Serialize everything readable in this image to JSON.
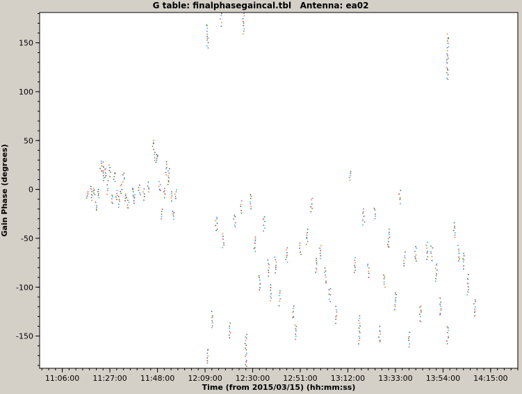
{
  "window": {
    "bg": "#d4d0c8",
    "plot_bg": "#ffffff",
    "frame_color": "#000000"
  },
  "chart_data": {
    "type": "scatter",
    "title": "G table: finalphasegaincal.tbl   Antenna: ea02",
    "xlabel": "Time (from 2015/03/15) (hh:mm:ss)",
    "ylabel": "Gain Phase (degrees)",
    "x_ticks": [
      "11:06:00",
      "11:27:00",
      "11:48:00",
      "12:09:00",
      "12:30:00",
      "12:51:00",
      "13:12:00",
      "13:33:00",
      "13:54:00",
      "14:15:00"
    ],
    "y_ticks": [
      -150,
      -100,
      -50,
      0,
      50,
      100,
      150
    ],
    "xlim": [
      "10:56:00",
      "14:27:00"
    ],
    "ylim": [
      -183,
      181
    ],
    "grid": false,
    "legend": "none",
    "palette": [
      "#2ca02c",
      "#d62728",
      "#1f77b4",
      "#ff7f0e",
      "#9467bd",
      "#17becf",
      "#8c564b"
    ],
    "clusters": [
      [
        "11:17:00",
        -8,
        -2
      ],
      [
        "11:19:00",
        -12,
        4
      ],
      [
        "11:20:00",
        -6,
        2
      ],
      [
        "11:21:00",
        -22,
        -14
      ],
      [
        "11:22:00",
        -8,
        0
      ],
      [
        "11:23:00",
        18,
        30
      ],
      [
        "11:24:00",
        10,
        27
      ],
      [
        "11:25:00",
        12,
        22
      ],
      [
        "11:26:00",
        -4,
        8
      ],
      [
        "11:27:00",
        14,
        25
      ],
      [
        "11:28:00",
        -15,
        -5
      ],
      [
        "11:29:00",
        8,
        18
      ],
      [
        "11:30:00",
        -10,
        -2
      ],
      [
        "11:31:00",
        -18,
        -8
      ],
      [
        "11:32:00",
        -4,
        6
      ],
      [
        "11:33:00",
        8,
        16
      ],
      [
        "11:34:00",
        -12,
        -4
      ],
      [
        "11:35:00",
        -20,
        -10
      ],
      [
        "11:37:00",
        -8,
        2
      ],
      [
        "11:38:00",
        -14,
        -6
      ],
      [
        "11:40:00",
        -5,
        5
      ],
      [
        "11:42:00",
        -10,
        0
      ],
      [
        "11:44:00",
        -3,
        7
      ],
      [
        "11:46:00",
        42,
        50
      ],
      [
        "11:47:00",
        28,
        38
      ],
      [
        "11:48:00",
        30,
        36
      ],
      [
        "11:49:00",
        -2,
        8
      ],
      [
        "11:50:00",
        -30,
        -20
      ],
      [
        "11:51:00",
        -8,
        2
      ],
      [
        "11:52:00",
        15,
        28
      ],
      [
        "11:53:00",
        5,
        22
      ],
      [
        "11:54:00",
        -12,
        -2
      ],
      [
        "11:55:00",
        -30,
        -22
      ],
      [
        "11:56:00",
        -10,
        0
      ],
      [
        "12:10:00",
        145,
        169
      ],
      [
        "12:10:00",
        -178,
        -163
      ],
      [
        "12:12:00",
        -142,
        -126
      ],
      [
        "12:14:00",
        -43,
        -28
      ],
      [
        "12:16:00",
        168,
        180
      ],
      [
        "12:17:00",
        -60,
        -46
      ],
      [
        "12:20:00",
        -152,
        -137
      ],
      [
        "12:22:00",
        -39,
        -26
      ],
      [
        "12:25:00",
        -24,
        -12
      ],
      [
        "12:26:00",
        160,
        180
      ],
      [
        "12:27:00",
        -181,
        -148
      ],
      [
        "12:29:00",
        -20,
        -5
      ],
      [
        "12:31:00",
        -64,
        -48
      ],
      [
        "12:33:00",
        -103,
        -88
      ],
      [
        "12:35:00",
        -42,
        -28
      ],
      [
        "12:37:00",
        -88,
        -73
      ],
      [
        "12:38:00",
        -114,
        -98
      ],
      [
        "12:40:00",
        -85,
        -70
      ],
      [
        "12:42:00",
        -118,
        -104
      ],
      [
        "12:45:00",
        -74,
        -59
      ],
      [
        "12:48:00",
        -132,
        -119
      ],
      [
        "12:49:00",
        -153,
        -138
      ],
      [
        "12:51:00",
        -67,
        -55
      ],
      [
        "12:54:00",
        -56,
        -41
      ],
      [
        "12:56:00",
        -22,
        -9
      ],
      [
        "12:58:00",
        -85,
        -70
      ],
      [
        "13:00:00",
        -71,
        -58
      ],
      [
        "13:02:00",
        -96,
        -80
      ],
      [
        "13:04:00",
        -114,
        -101
      ],
      [
        "13:07:00",
        -136,
        -120
      ],
      [
        "13:13:00",
        10,
        19
      ],
      [
        "13:15:00",
        -85,
        -70
      ],
      [
        "13:17:00",
        -157,
        -130
      ],
      [
        "13:19:00",
        -36,
        -20
      ],
      [
        "13:21:00",
        -89,
        -76
      ],
      [
        "13:24:00",
        -31,
        -19
      ],
      [
        "13:26:00",
        -156,
        -141
      ],
      [
        "13:28:00",
        -100,
        -87
      ],
      [
        "13:30:00",
        -60,
        -41
      ],
      [
        "13:33:00",
        -122,
        -105
      ],
      [
        "13:35:00",
        -14,
        -2
      ],
      [
        "13:37:00",
        -79,
        -65
      ],
      [
        "13:39:00",
        -161,
        -147
      ],
      [
        "13:42:00",
        -74,
        -58
      ],
      [
        "13:44:00",
        -136,
        -119
      ],
      [
        "13:47:00",
        -71,
        -55
      ],
      [
        "13:49:00",
        -72,
        -58
      ],
      [
        "13:51:00",
        -93,
        -76
      ],
      [
        "13:53:00",
        -129,
        -112
      ],
      [
        "13:56:00",
        112,
        158
      ],
      [
        "13:56:00",
        -157,
        -140
      ],
      [
        "13:59:00",
        -50,
        -34
      ],
      [
        "14:01:00",
        -74,
        -58
      ],
      [
        "14:03:00",
        -82,
        -65
      ],
      [
        "14:05:00",
        -107,
        -88
      ],
      [
        "14:08:00",
        -129,
        -112
      ]
    ]
  }
}
